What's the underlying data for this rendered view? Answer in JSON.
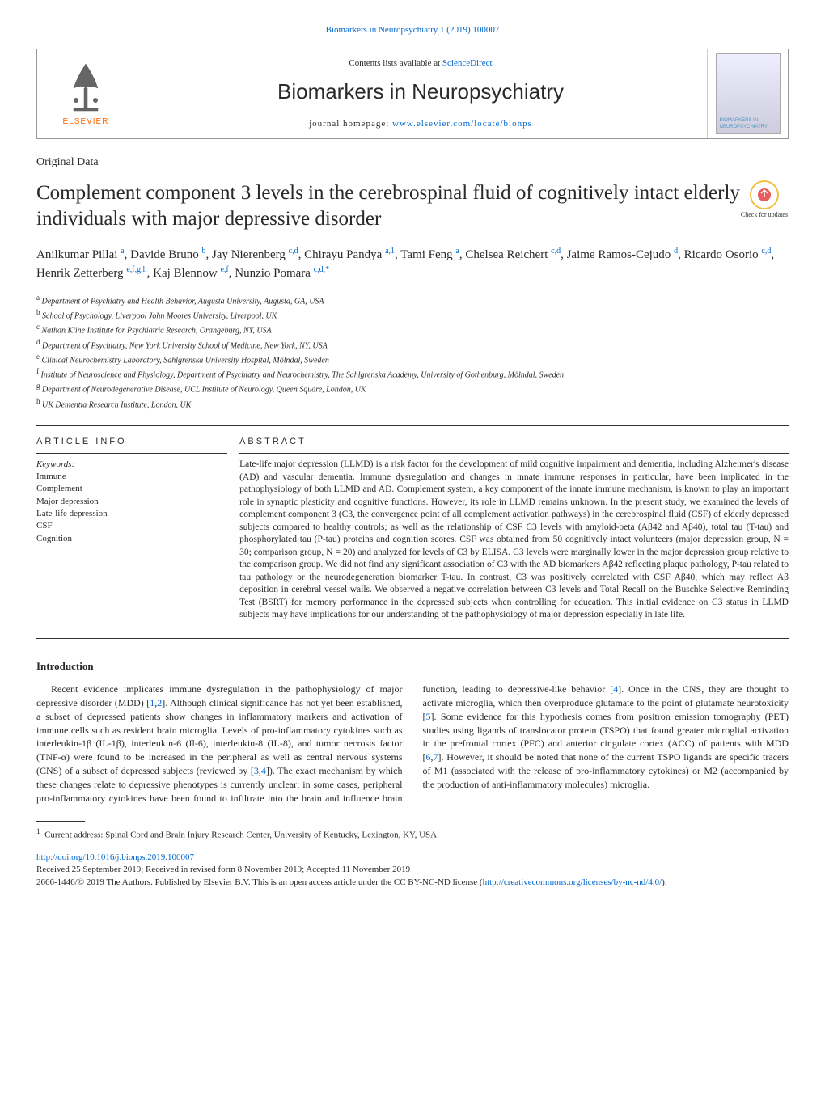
{
  "top_link": "Biomarkers in Neuropsychiatry 1 (2019) 100007",
  "header": {
    "contents_pre": "Contents lists available at ",
    "contents_link": "ScienceDirect",
    "journal_name": "Biomarkers in Neuropsychiatry",
    "homepage_pre": "journal homepage: ",
    "homepage_link": "www.elsevier.com/locate/bionps",
    "elsevier": "ELSEVIER",
    "cover_text": "BIOMARKERS IN NEUROPSYCHIATRY"
  },
  "article_type": "Original Data",
  "title": "Complement component 3 levels in the cerebrospinal fluid of cognitively intact elderly individuals with major depressive disorder",
  "check_updates": "Check for updates",
  "authors_html": "Anilkumar Pillai <sup>a</sup>, Davide Bruno <sup>b</sup>, Jay Nierenberg <sup>c,d</sup>, Chirayu Pandya <sup>a,1</sup>, Tami Feng <sup>a</sup>, Chelsea Reichert <sup>c,d</sup>, Jaime Ramos-Cejudo <sup>d</sup>, Ricardo Osorio <sup>c,d</sup>, Henrik Zetterberg <sup>e,f,g,h</sup>, Kaj Blennow <sup>e,f</sup>, Nunzio Pomara <sup>c,d,*</sup>",
  "affiliations": [
    {
      "sup": "a",
      "text": "Department of Psychiatry and Health Behavior, Augusta University, Augusta, GA, USA"
    },
    {
      "sup": "b",
      "text": "School of Psychology, Liverpool John Moores University, Liverpool, UK"
    },
    {
      "sup": "c",
      "text": "Nathan Kline Institute for Psychiatric Research, Orangeburg, NY, USA"
    },
    {
      "sup": "d",
      "text": "Department of Psychiatry, New York University School of Medicine, New York, NY, USA"
    },
    {
      "sup": "e",
      "text": "Clinical Neurochemistry Laboratory, Sahlgrenska University Hospital, Mölndal, Sweden"
    },
    {
      "sup": "f",
      "text": "Institute of Neuroscience and Physiology, Department of Psychiatry and Neurochemistry, The Sahlgrenska Academy, University of Gothenburg, Mölndal, Sweden"
    },
    {
      "sup": "g",
      "text": "Department of Neurodegenerative Disease, UCL Institute of Neurology, Queen Square, London, UK"
    },
    {
      "sup": "h",
      "text": "UK Dementia Research Institute, London, UK"
    }
  ],
  "article_info": {
    "heading": "ARTICLE INFO",
    "keywords_label": "Keywords:",
    "keywords": [
      "Immune",
      "Complement",
      "Major depression",
      "Late-life depression",
      "CSF",
      "Cognition"
    ]
  },
  "abstract": {
    "heading": "ABSTRACT",
    "text": "Late-life major depression (LLMD) is a risk factor for the development of mild cognitive impairment and dementia, including Alzheimer's disease (AD) and vascular dementia. Immune dysregulation and changes in innate immune responses in particular, have been implicated in the pathophysiology of both LLMD and AD. Complement system, a key component of the innate immune mechanism, is known to play an important role in synaptic plasticity and cognitive functions. However, its role in LLMD remains unknown. In the present study, we examined the levels of complement component 3 (C3, the convergence point of all complement activation pathways) in the cerebrospinal fluid (CSF) of elderly depressed subjects compared to healthy controls; as well as the relationship of CSF C3 levels with amyloid-beta (Aβ42 and Aβ40), total tau (T-tau) and phosphorylated tau (P-tau) proteins and cognition scores. CSF was obtained from 50 cognitively intact volunteers (major depression group, N = 30; comparison group, N = 20) and analyzed for levels of C3 by ELISA. C3 levels were marginally lower in the major depression group relative to the comparison group. We did not find any significant association of C3 with the AD biomarkers Aβ42 reflecting plaque pathology, P-tau related to tau pathology or the neurodegeneration biomarker T-tau. In contrast, C3 was positively correlated with CSF Aβ40, which may reflect Aβ deposition in cerebral vessel walls. We observed a negative correlation between C3 levels and Total Recall on the Buschke Selective Reminding Test (BSRT) for memory performance in the depressed subjects when controlling for education. This initial evidence on C3 status in LLMD subjects may have implications for our understanding of the pathophysiology of major depression especially in late life."
  },
  "intro": {
    "heading": "Introduction",
    "html": "Recent evidence implicates immune dysregulation in the pathophysiology of major depressive disorder (MDD) [<a>1</a>,<a>2</a>]. Although clinical significance has not yet been established, a subset of depressed patients show changes in inflammatory markers and activation of immune cells such as resident brain microglia. Levels of pro-inflammatory cytokines such as interleukin-1β (IL-1β), interleukin-6 (Il-6), interleukin-8 (IL-8), and tumor necrosis factor (TNF-α) were found to be increased in the peripheral as well as central nervous systems (CNS) of a subset of depressed subjects (reviewed by [<a>3</a>,<a>4</a>]). The exact mechanism by which these changes relate to depressive phenotypes is currently unclear; in some cases, peripheral pro-inflammatory cytokines have been found to infiltrate into the brain and influence brain function, leading to depressive-like behavior [<a>4</a>]. Once in the CNS, they are thought to activate microglia, which then overproduce glutamate to the point of glutamate neurotoxicity [<a>5</a>]. Some evidence for this hypothesis comes from positron emission tomography (PET) studies using ligands of translocator protein (TSPO) that found greater microglial activation in the prefrontal cortex (PFC) and anterior cingulate cortex (ACC) of patients with MDD [<a>6</a>,<a>7</a>]. However, it should be noted that none of the current TSPO ligands are specific tracers of M1 (associated with the release of pro-inflammatory cytokines) or M2 (accompanied by the production of anti-inflammatory molecules) microglia."
  },
  "footnote": {
    "sup": "1",
    "text": "Current address: Spinal Cord and Brain Injury Research Center, University of Kentucky, Lexington, KY, USA."
  },
  "footer": {
    "doi": "http://doi.org/10.1016/j.bionps.2019.100007",
    "received": "Received 25 September 2019; Received in revised form 8 November 2019; Accepted 11 November 2019",
    "license": "2666-1446/© 2019 The Authors. Published by Elsevier B.V. This is an open access article under the CC BY-NC-ND license (",
    "license_link": "http://creativecommons.org/licenses/by-nc-nd/4.0/",
    "license_close": ")."
  },
  "colors": {
    "link": "#0066cc",
    "elsevier_orange": "#ff6600",
    "border": "#999999",
    "text": "#2a2a2a"
  }
}
